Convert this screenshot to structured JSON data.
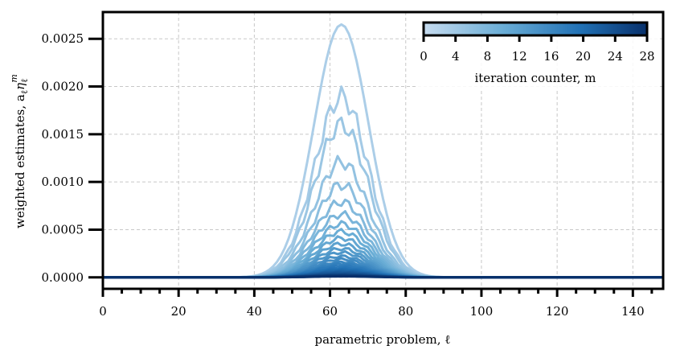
{
  "chart_data": {
    "type": "line",
    "title": "",
    "xlabel": "parametric problem, ℓ",
    "ylabel": "weighted estimates, a",
    "ylabel_sub": "ℓ",
    "ylabel_eta": "η",
    "ylabel_eta_sub": "ℓ",
    "ylabel_eta_sup": "m",
    "xlim": [
      0,
      148
    ],
    "ylim": [
      -0.00012,
      0.00278
    ],
    "xticks": [
      0,
      20,
      40,
      60,
      80,
      100,
      120,
      140
    ],
    "xtick_labels": [
      "0",
      "20",
      "40",
      "60",
      "80",
      "100",
      "120",
      "140"
    ],
    "yticks": [
      0,
      0.0005,
      0.001,
      0.0015,
      0.002,
      0.0025
    ],
    "ytick_labels": [
      "0.0000",
      "0.0005",
      "0.0010",
      "0.0015",
      "0.0020",
      "0.0025"
    ],
    "grid": true,
    "peak_center": 63,
    "peak_width": 7.2,
    "colormap": "Blues",
    "color_light": "#b9d6ea",
    "color_dark": "#08306b",
    "colorbar": {
      "label": "iteration counter, m",
      "range": [
        0,
        28
      ],
      "ticks": [
        0,
        4,
        8,
        12,
        16,
        20,
        24,
        28
      ],
      "tick_labels": [
        "0",
        "4",
        "8",
        "12",
        "16",
        "20",
        "24",
        "28"
      ],
      "placement": "top-right"
    },
    "series": [
      {
        "iteration": 0,
        "peak": 0.00265
      },
      {
        "iteration": 1,
        "peak": 0.00189
      },
      {
        "iteration": 2,
        "peak": 0.0016
      },
      {
        "iteration": 3,
        "peak": 0.00121
      },
      {
        "iteration": 4,
        "peak": 0.00097
      },
      {
        "iteration": 5,
        "peak": 0.00079
      },
      {
        "iteration": 6,
        "peak": 0.00066
      },
      {
        "iteration": 7,
        "peak": 0.00056
      },
      {
        "iteration": 8,
        "peak": 0.00048
      },
      {
        "iteration": 9,
        "peak": 0.00041
      },
      {
        "iteration": 10,
        "peak": 0.00035
      },
      {
        "iteration": 11,
        "peak": 0.0003
      },
      {
        "iteration": 12,
        "peak": 0.00026
      },
      {
        "iteration": 13,
        "peak": 0.00022
      },
      {
        "iteration": 14,
        "peak": 0.00019
      },
      {
        "iteration": 15,
        "peak": 0.00016
      },
      {
        "iteration": 16,
        "peak": 0.00014
      },
      {
        "iteration": 17,
        "peak": 0.00012
      },
      {
        "iteration": 18,
        "peak": 0.0001
      },
      {
        "iteration": 19,
        "peak": 8.5e-05
      },
      {
        "iteration": 20,
        "peak": 7e-05
      },
      {
        "iteration": 21,
        "peak": 6e-05
      },
      {
        "iteration": 22,
        "peak": 5e-05
      },
      {
        "iteration": 23,
        "peak": 4e-05
      },
      {
        "iteration": 24,
        "peak": 3.2e-05
      },
      {
        "iteration": 25,
        "peak": 2.5e-05
      },
      {
        "iteration": 26,
        "peak": 2e-05
      },
      {
        "iteration": 27,
        "peak": 1.5e-05
      },
      {
        "iteration": 28,
        "peak": 1e-05
      }
    ]
  }
}
